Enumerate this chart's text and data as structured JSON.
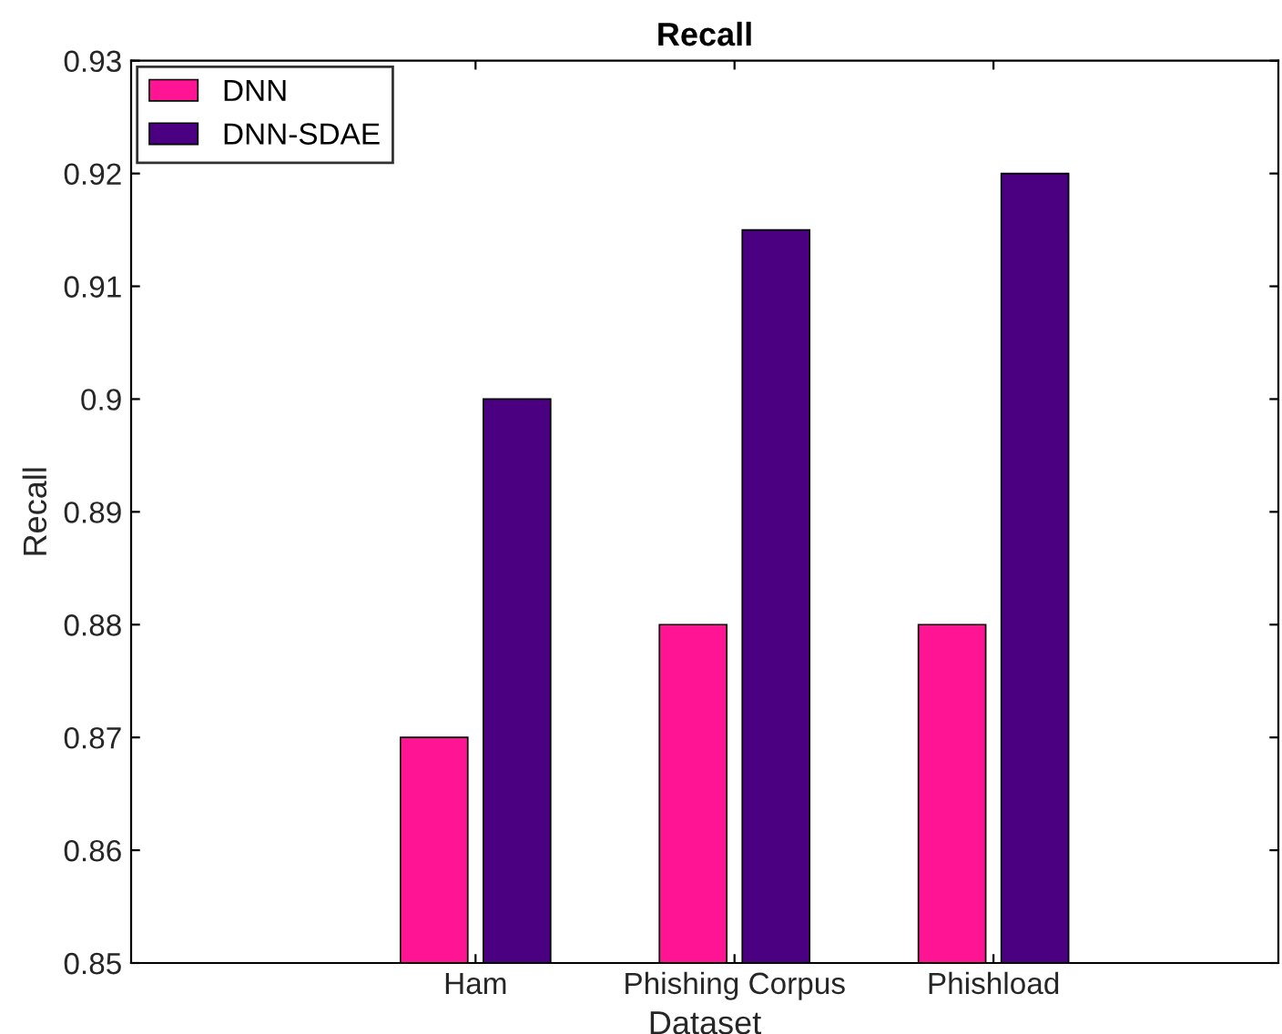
{
  "chart_data": {
    "type": "bar",
    "title": "Recall",
    "xlabel": "Dataset",
    "ylabel": "Recall",
    "categories": [
      "Ham",
      "Phishing Corpus",
      "Phishload"
    ],
    "series": [
      {
        "name": "DNN",
        "color": "#ff1493",
        "values": [
          0.87,
          0.88,
          0.88
        ]
      },
      {
        "name": "DNN-SDAE",
        "color": "#4b0082",
        "values": [
          0.9,
          0.915,
          0.92
        ]
      }
    ],
    "ylim": [
      0.85,
      0.93
    ],
    "yticks": [
      0.85,
      0.86,
      0.87,
      0.88,
      0.89,
      0.9,
      0.91,
      0.92,
      0.93
    ],
    "grid": false,
    "legend": "top left"
  }
}
